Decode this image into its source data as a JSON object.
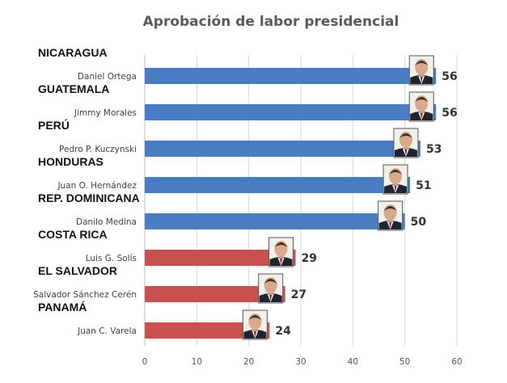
{
  "chart_data": {
    "type": "bar",
    "orientation": "horizontal",
    "title": "Aprobación de labor presidencial",
    "xlim": [
      0,
      60
    ],
    "xticks": [
      0,
      10,
      20,
      30,
      40,
      50,
      60
    ],
    "grid": true,
    "colors": {
      "high": "#4a7cc4",
      "low": "#c9514f",
      "grid": "#d9d9d9",
      "axis": "#bfbfbf"
    },
    "rows": [
      {
        "country": "NICARAGUA",
        "president": "Daniel Ortega",
        "value": 56,
        "color_key": "high"
      },
      {
        "country": "GUATEMALA",
        "president": "Jimmy Morales",
        "value": 56,
        "color_key": "high"
      },
      {
        "country": "PERÚ",
        "president": "Pedro P. Kuczynski",
        "value": 53,
        "color_key": "high"
      },
      {
        "country": "HONDURAS",
        "president": "Juan O. Hernández",
        "value": 51,
        "color_key": "high"
      },
      {
        "country": "REP. DOMINICANA",
        "president": "Danilo Medina",
        "value": 50,
        "color_key": "high"
      },
      {
        "country": "COSTA RICA",
        "president": "Luis G. Solís",
        "value": 29,
        "color_key": "low"
      },
      {
        "country": "EL SALVADOR",
        "president": "Salvador Sánchez Cerén",
        "value": 27,
        "color_key": "low"
      },
      {
        "country": "PANAMÁ",
        "president": "Juan C. Varela",
        "value": 24,
        "color_key": "low"
      }
    ],
    "photos": [
      {
        "icon": "daniel-ortega-portrait-icon"
      },
      {
        "icon": "jimmy-morales-portrait-icon"
      },
      {
        "icon": "pedro-kuczynski-portrait-icon"
      },
      {
        "icon": "juan-hernandez-portrait-icon"
      },
      {
        "icon": "danilo-medina-portrait-icon"
      },
      {
        "icon": "luis-solis-portrait-icon"
      },
      {
        "icon": "salvador-sanchez-portrait-icon"
      },
      {
        "icon": "juan-varela-portrait-icon"
      }
    ]
  }
}
